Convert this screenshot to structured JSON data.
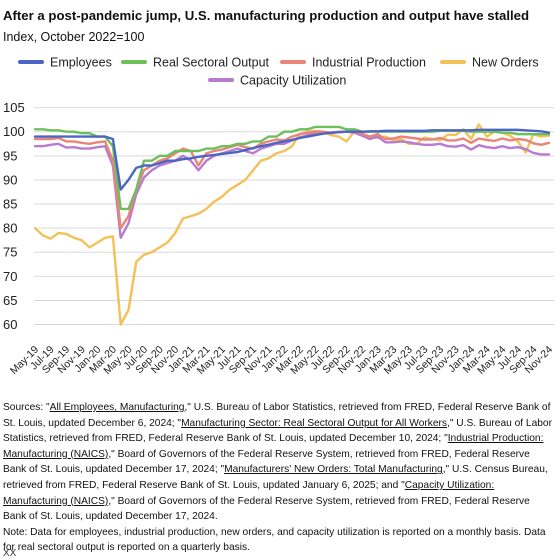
{
  "header": {
    "title": "After a post-pandemic jump, U.S. manufacturing production and output have stalled",
    "subtitle": "Index, October 2022=100"
  },
  "colors": {
    "employees": "#4a66c5",
    "real_sectoral_output": "#6dbf5a",
    "industrial_production": "#e88578",
    "new_orders": "#f3c157",
    "capacity_utilization": "#b97bd0",
    "grid": "#d9d9d9"
  },
  "chart_data": {
    "type": "line",
    "title": "After a post-pandemic jump, U.S. manufacturing production and output have stalled",
    "subtitle": "Index, October 2022=100",
    "xlabel": "",
    "ylabel": "",
    "ylim": [
      57,
      107
    ],
    "yticks": [
      105,
      100,
      95,
      90,
      85,
      80,
      75,
      70,
      65,
      60
    ],
    "grid": "horizontal",
    "legend_position": "top",
    "x_tick_labels": [
      "May-19",
      "Jul-19",
      "Sep-19",
      "Nov-19",
      "Jan-20",
      "Mar-20",
      "May-20",
      "Jul-20",
      "Sep-20",
      "Nov-20",
      "Jan-21",
      "Mar-21",
      "May-21",
      "Jul-21",
      "Sep-21",
      "Nov-21",
      "Jan-22",
      "Mar-22",
      "May-22",
      "Jul-22",
      "Sep-22",
      "Nov-22",
      "Jan-23",
      "Mar-23",
      "May-23",
      "Jul-23",
      "Sep-23",
      "Nov-23",
      "Jan-24",
      "Mar-24",
      "May-24",
      "Jul-24",
      "Sep-24",
      "Nov-24"
    ],
    "x": [
      "2019-05",
      "2019-06",
      "2019-07",
      "2019-08",
      "2019-09",
      "2019-10",
      "2019-11",
      "2019-12",
      "2020-01",
      "2020-02",
      "2020-03",
      "2020-04",
      "2020-05",
      "2020-06",
      "2020-07",
      "2020-08",
      "2020-09",
      "2020-10",
      "2020-11",
      "2020-12",
      "2021-01",
      "2021-02",
      "2021-03",
      "2021-04",
      "2021-05",
      "2021-06",
      "2021-07",
      "2021-08",
      "2021-09",
      "2021-10",
      "2021-11",
      "2021-12",
      "2022-01",
      "2022-02",
      "2022-03",
      "2022-04",
      "2022-05",
      "2022-06",
      "2022-07",
      "2022-08",
      "2022-09",
      "2022-10",
      "2022-11",
      "2022-12",
      "2023-01",
      "2023-02",
      "2023-03",
      "2023-04",
      "2023-05",
      "2023-06",
      "2023-07",
      "2023-08",
      "2023-09",
      "2023-10",
      "2023-11",
      "2023-12",
      "2024-01",
      "2024-02",
      "2024-03",
      "2024-04",
      "2024-05",
      "2024-06",
      "2024-07",
      "2024-08",
      "2024-09",
      "2024-10",
      "2024-11"
    ],
    "series": [
      {
        "name": "Employees",
        "key": "employees",
        "values": [
          99,
          99,
          99,
          99,
          99,
          99,
          99,
          99,
          99,
          99,
          98.5,
          88,
          90,
          92.5,
          93,
          93,
          93.5,
          94,
          94,
          94.3,
          94.5,
          94.8,
          95,
          95.2,
          95.4,
          95.6,
          95.8,
          96.2,
          96.6,
          97,
          97.3,
          97.7,
          98,
          98.3,
          98.7,
          99,
          99.3,
          99.6,
          99.8,
          99.9,
          100,
          100,
          100,
          100.1,
          100.1,
          100.2,
          100.2,
          100.2,
          100.2,
          100.2,
          100.2,
          100.3,
          100.3,
          100.3,
          100.3,
          100.3,
          100.3,
          100.4,
          100.4,
          100.4,
          100.4,
          100.4,
          100.4,
          100.3,
          100.2,
          100.1,
          99.8
        ]
      },
      {
        "name": "Real Sectoral Output",
        "key": "real_sectoral_output",
        "values": [
          100.5,
          100.5,
          100.3,
          100.3,
          100,
          100,
          99.7,
          99.7,
          99,
          99,
          97,
          84,
          84,
          88,
          94,
          94,
          95,
          95,
          96,
          96,
          96,
          96,
          96.5,
          96.5,
          97,
          97,
          97.5,
          97.5,
          98,
          98,
          99,
          99,
          100,
          100,
          100.5,
          100.5,
          101,
          101,
          101,
          101,
          100.5,
          100.5,
          100,
          100,
          100,
          100,
          100,
          100,
          100,
          100,
          100,
          100,
          100.2,
          100.2,
          100.2,
          100.2,
          100,
          100,
          100,
          100,
          99.8,
          99.8,
          99.5,
          99.5,
          99.5,
          99.5,
          99.5
        ]
      },
      {
        "name": "Industrial Production",
        "key": "industrial_production",
        "values": [
          98.5,
          98.5,
          98.5,
          98.7,
          98,
          98,
          97.7,
          97.5,
          97.8,
          98,
          94,
          80,
          82.5,
          88,
          92,
          93,
          94,
          94.5,
          95.5,
          96.5,
          96,
          93,
          95.5,
          96,
          96.3,
          96.8,
          97.3,
          96.8,
          96.5,
          97.5,
          98,
          98.4,
          98.2,
          99,
          99.5,
          99.8,
          100,
          100,
          99.8,
          100,
          100,
          100,
          99.6,
          99,
          99.5,
          98.5,
          98.6,
          99,
          98.8,
          98.6,
          98.4,
          98.4,
          98.7,
          98.2,
          98.2,
          98.6,
          97.7,
          98.6,
          98.3,
          98.1,
          98.6,
          98.2,
          98.5,
          98.3,
          97.6,
          97.3,
          97.7
        ]
      },
      {
        "name": "New Orders",
        "key": "new_orders",
        "values": [
          80,
          78.5,
          77.8,
          79,
          78.8,
          78,
          77.5,
          76,
          77,
          78,
          78.3,
          60,
          63,
          73,
          74.5,
          75,
          76,
          77,
          79,
          82,
          82.5,
          83,
          84,
          85.5,
          86.5,
          88,
          89,
          90,
          92,
          94,
          94.5,
          95.5,
          96,
          97,
          99.5,
          100,
          100.2,
          100,
          99.3,
          99,
          98,
          100,
          99.2,
          99,
          98.7,
          99,
          98.2,
          98.5,
          97.5,
          97.5,
          98.8,
          98.5,
          98.2,
          99.4,
          99.3,
          100.5,
          98.5,
          101.5,
          99,
          100,
          99.8,
          99.2,
          98,
          95.7,
          99.5,
          99,
          99.2
        ]
      },
      {
        "name": "Capacity Utilization",
        "key": "capacity_utilization",
        "values": [
          97,
          97,
          97.3,
          97.5,
          96.7,
          96.8,
          96.5,
          96.5,
          96.8,
          97,
          93,
          78,
          81,
          87,
          90.5,
          92,
          93,
          93.5,
          94,
          95,
          94,
          92,
          94,
          95,
          95.5,
          96,
          96.5,
          96,
          95.5,
          96.5,
          97,
          97.5,
          97.5,
          98.2,
          98.8,
          99.3,
          99.8,
          99.9,
          99.7,
          99.9,
          100,
          99.8,
          99.2,
          98.5,
          99,
          97.8,
          97.8,
          98,
          97.8,
          97.5,
          97.3,
          97.3,
          97.5,
          97,
          96.9,
          97.2,
          96.3,
          97.2,
          96.8,
          96.6,
          97,
          96.6,
          96.8,
          96.4,
          95.6,
          95.3,
          95.3
        ]
      }
    ]
  },
  "sources": {
    "p1": "Sources: \"",
    "l1": "All Employees, Manufacturing",
    "p2": ",\" U.S. Bureau of Labor Statistics, retrieved from FRED, Federal Reserve Bank of St. Louis, updated December 6, 2024; \"",
    "l2": "Manufacturing Sector: Real Sectoral Output for All Workers",
    "p3": ",\" U.S. Bureau of Labor Statistics, retrieved from FRED, Federal Reserve Bank of St. Louis, updated December 10, 2024; \"",
    "l3": "Industrial Production: Manufacturing (NAICS)",
    "p4": ",\" Board of Governors of the Federal Reserve System, retrieved from FRED, Federal Reserve Bank of St. Louis, updated December 17, 2024; \"",
    "l4": "Manufacturers' New Orders: Total Manufacturing",
    "p5": ",\" U.S. Census Bureau, retrieved from FRED, Federal Reserve Bank of St. Louis, updated January 6, 2025; and \"",
    "l5": "Capacity Utilization: Manufacturing (NAICS)",
    "p6": ",\" Board of Governors of the Federal Reserve System, retrieved from FRED, Federal Reserve Bank of St. Louis, updated December 17, 2024.",
    "note": "Note: Data for employees, industrial production, new orders, and capacity utilization is reported on a monthly basis. Data for real sectoral output is reported on a quarterly basis."
  },
  "footer": "XX"
}
